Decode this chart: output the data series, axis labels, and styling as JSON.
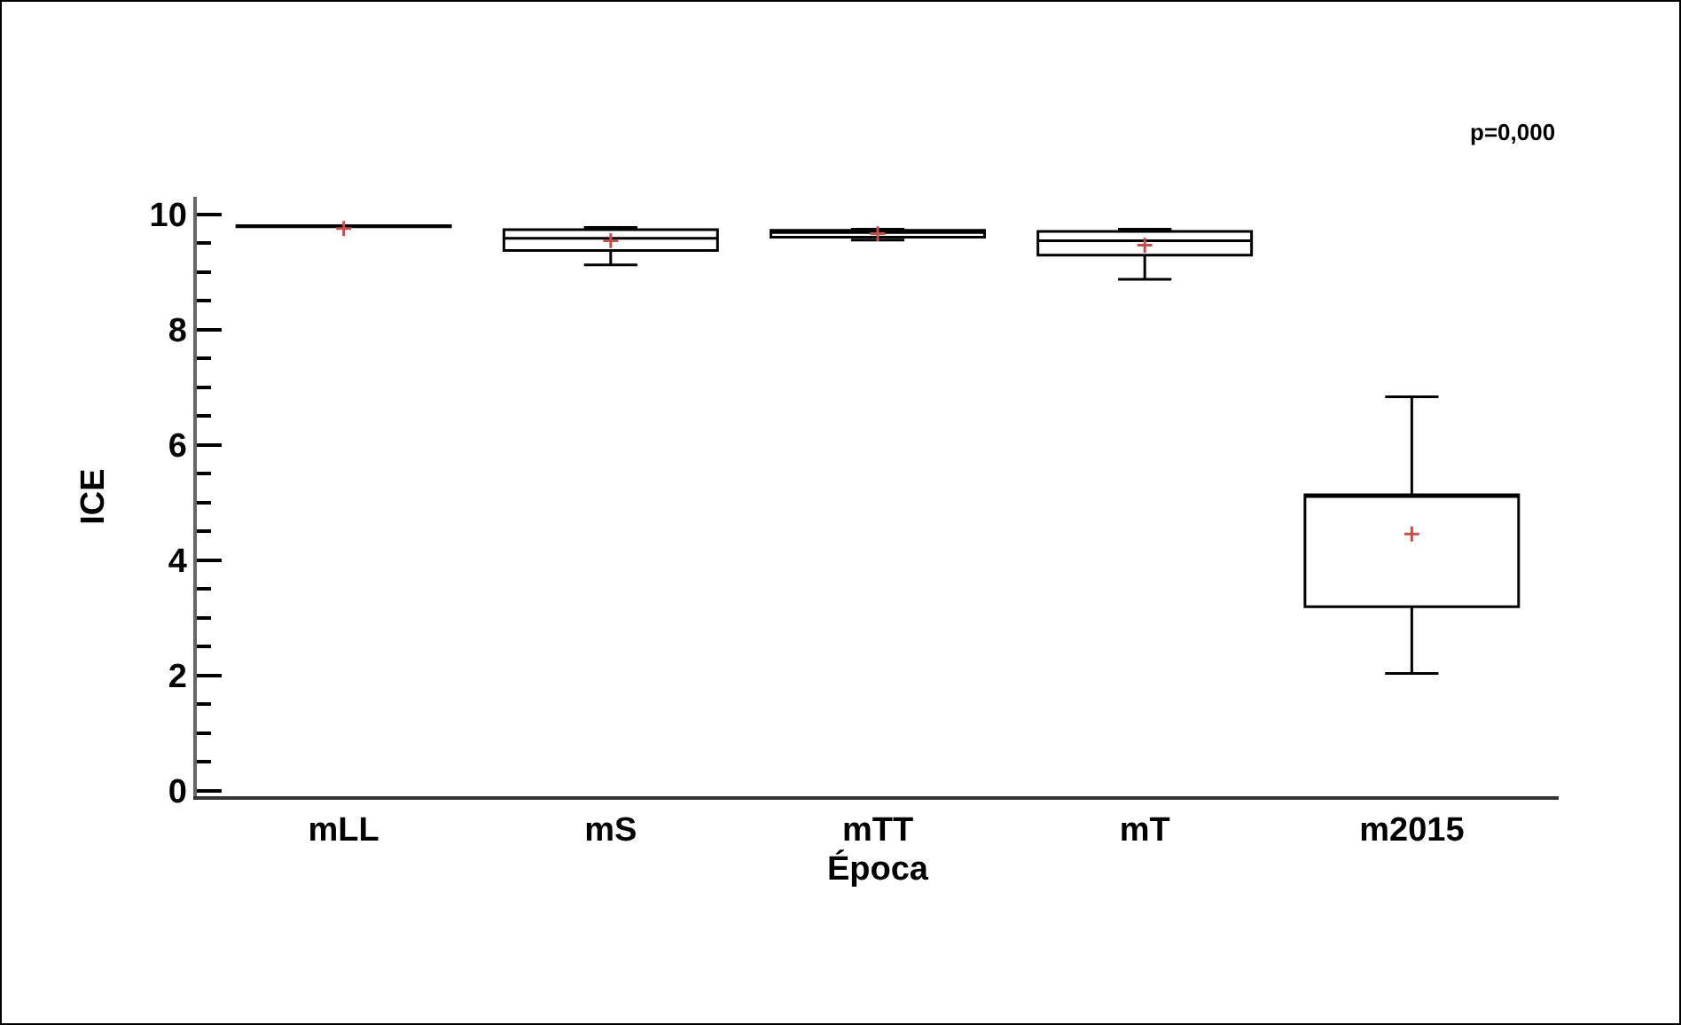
{
  "chart_data": {
    "type": "box",
    "xlabel": "Época",
    "ylabel": "ICE",
    "annotations": [
      "p=0,000"
    ],
    "categories": [
      "mLL",
      "mS",
      "mTT",
      "mT",
      "m2015"
    ],
    "boxes": [
      {
        "low": 9.78,
        "q1": 9.78,
        "median": 9.8,
        "q3": 9.8,
        "high": 9.8,
        "mean": 9.75
      },
      {
        "low": 9.12,
        "q1": 9.37,
        "median": 9.58,
        "q3": 9.73,
        "high": 9.77,
        "mean": 9.54
      },
      {
        "low": 9.55,
        "q1": 9.6,
        "median": 9.68,
        "q3": 9.72,
        "high": 9.74,
        "mean": 9.66
      },
      {
        "low": 8.87,
        "q1": 9.29,
        "median": 9.54,
        "q3": 9.7,
        "high": 9.74,
        "mean": 9.46
      },
      {
        "low": 2.03,
        "q1": 3.19,
        "median": 5.13,
        "q3": 5.13,
        "high": 6.83,
        "mean": 4.45
      }
    ],
    "color": "#000000",
    "ylim": [
      -0.1,
      10.3
    ],
    "yticks": [
      0,
      2,
      4,
      6,
      8,
      10
    ],
    "grid": false,
    "legend": false
  }
}
